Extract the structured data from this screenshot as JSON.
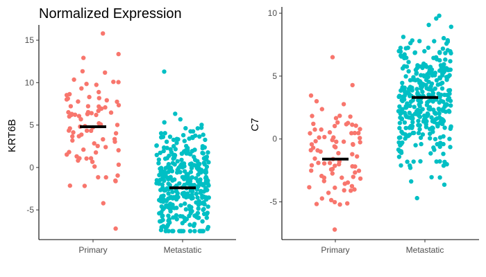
{
  "chart_data": [
    {
      "type": "scatter",
      "title": "Normalized Expression",
      "xlabel": "",
      "ylabel": "KRT6B",
      "categories": [
        "Primary",
        "Metastatic"
      ],
      "colors": [
        "#f8766d",
        "#00bfc4"
      ],
      "ylim": [
        -8.5,
        16.8
      ],
      "yticks": [
        -5,
        0,
        5,
        10,
        15
      ],
      "ytick_labels": [
        "-5",
        "0",
        "5",
        "10",
        "15"
      ],
      "grid": false,
      "legend": "none",
      "jitter_points": [
        {
          "category": "Primary",
          "n": 85,
          "min": -7.2,
          "max": 15.8,
          "median": 4.8
        },
        {
          "category": "Metastatic",
          "n": 360,
          "min": -7.5,
          "max": 11.3,
          "median": -2.4
        }
      ],
      "medians": [
        4.8,
        -2.4
      ]
    },
    {
      "type": "scatter",
      "title": "",
      "xlabel": "",
      "ylabel": "C7",
      "categories": [
        "Primary",
        "Metastatic"
      ],
      "colors": [
        "#f8766d",
        "#00bfc4"
      ],
      "ylim": [
        -8.0,
        10.5
      ],
      "yticks": [
        -5,
        0,
        5,
        10
      ],
      "ytick_labels": [
        "-5",
        "0",
        "5",
        "10"
      ],
      "grid": false,
      "legend": "none",
      "jitter_points": [
        {
          "category": "Primary",
          "n": 85,
          "min": -7.2,
          "max": 6.5,
          "median": -1.6
        },
        {
          "category": "Metastatic",
          "n": 360,
          "min": -4.7,
          "max": 9.8,
          "median": 3.3
        }
      ],
      "medians": [
        -1.6,
        3.3
      ]
    }
  ]
}
